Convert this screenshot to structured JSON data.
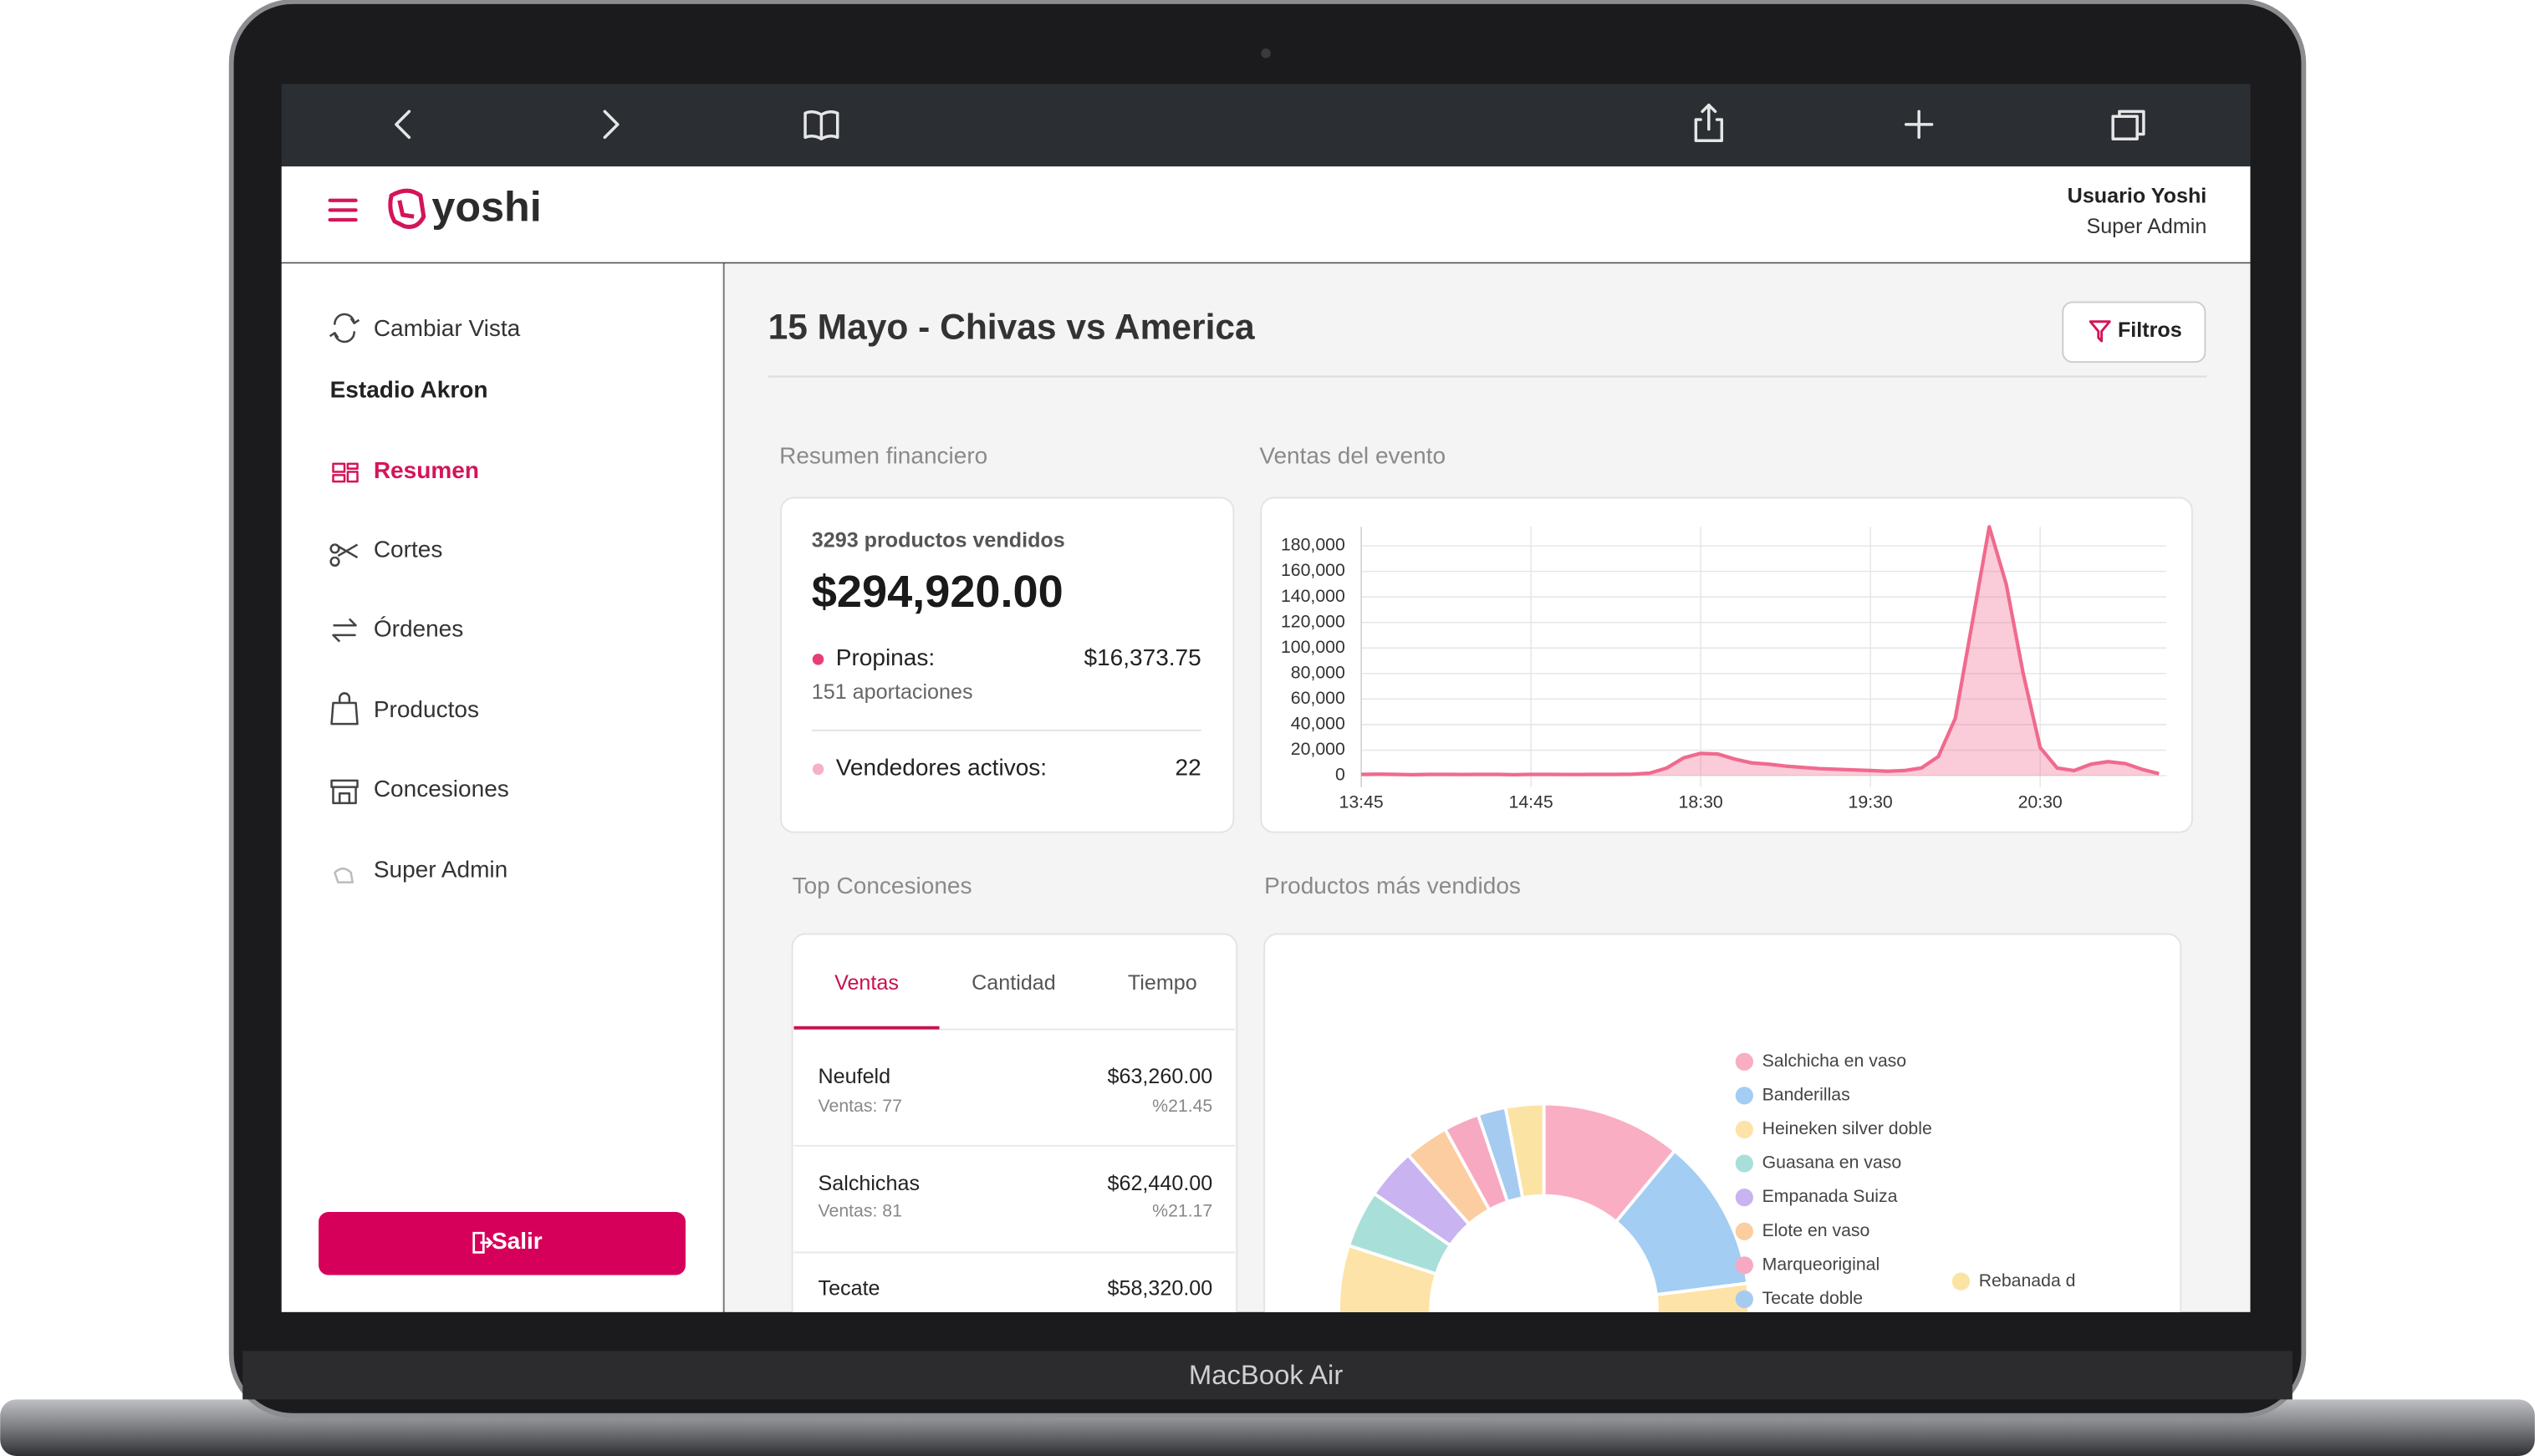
{
  "device_label": "MacBook Air",
  "header": {
    "brand": "yoshi",
    "user_name": "Usuario Yoshi",
    "user_role": "Super Admin"
  },
  "sidebar": {
    "switch_view": "Cambiar Vista",
    "venue": "Estadio Akron",
    "items": [
      "Resumen",
      "Cortes",
      "Órdenes",
      "Productos",
      "Concesiones",
      "Super Admin"
    ],
    "logout": "Salir"
  },
  "page": {
    "title": "15 Mayo - Chivas vs America",
    "filters_button": "Filtros"
  },
  "financial": {
    "title": "Resumen financiero",
    "products_sold": "3293 productos vendidos",
    "total": "$294,920.00",
    "tips_label": "Propinas:",
    "tips_value": "$16,373.75",
    "tips_count": "151 aportaciones",
    "active_vendors_label": "Vendedores activos:",
    "active_vendors_value": "22"
  },
  "sales_chart": {
    "type": "area",
    "title": "Ventas del evento",
    "categories": [
      "13:45",
      null,
      null,
      null,
      null,
      null,
      null,
      null,
      null,
      null,
      "14:45",
      null,
      null,
      null,
      null,
      null,
      null,
      null,
      null,
      null,
      "18:30",
      null,
      null,
      null,
      null,
      null,
      null,
      null,
      null,
      null,
      "19:30",
      null,
      null,
      null,
      null,
      null,
      null,
      null,
      null,
      null,
      "20:30",
      null,
      null,
      null,
      null,
      null,
      null,
      null
    ],
    "values": [
      1000,
      1200,
      1000,
      800,
      1000,
      1000,
      900,
      1000,
      1000,
      800,
      1000,
      1000,
      900,
      900,
      1000,
      1000,
      1200,
      2000,
      6000,
      14000,
      17500,
      17000,
      13000,
      10000,
      9000,
      7500,
      6500,
      5500,
      5000,
      4500,
      4000,
      3500,
      4000,
      6000,
      15000,
      45000,
      120000,
      195000,
      150000,
      80000,
      22000,
      6000,
      4000,
      9000,
      11000,
      9500,
      5000,
      1500
    ],
    "color": "#f06a8e",
    "ylim": [
      0,
      200000
    ],
    "yticks": [
      0,
      {
        "value": 20000,
        "label": "20,000"
      },
      {
        "value": 40000,
        "label": "40,000"
      },
      {
        "value": 60000,
        "label": "60,000"
      },
      {
        "value": 80000,
        "label": "80,000"
      },
      {
        "value": 100000,
        "label": "100,000"
      },
      {
        "value": 120000,
        "label": "120,000"
      },
      {
        "value": 140000,
        "label": "140,000"
      },
      {
        "value": 160000,
        "label": "160,000"
      },
      {
        "value": 180000,
        "label": "180,000"
      }
    ],
    "grid": true
  },
  "top_concessions": {
    "title": "Top Concesiones",
    "tabs": [
      "Ventas",
      "Cantidad",
      "Tiempo"
    ],
    "rows": [
      {
        "name": "Neufeld",
        "amount": "$63,260.00",
        "sales": "Ventas: 77",
        "share": "%21.45"
      },
      {
        "name": "Salchichas",
        "amount": "$62,440.00",
        "sales": "Ventas: 81",
        "share": "%21.17"
      },
      {
        "name": "Tecate",
        "amount": "$58,320.00"
      }
    ]
  },
  "products_chart": {
    "type": "donut",
    "title": "Productos más vendidos",
    "categories": [
      "Salchicha en vaso",
      "Banderillas",
      "Heineken silver doble",
      "Guasana en vaso",
      "Empanada Suiza",
      "Elote en vaso",
      "Marqueoriginal",
      "Tecate doble",
      "Rebanada d"
    ],
    "values": [
      11,
      12,
      57,
      4.5,
      4,
      3.5,
      2.8,
      2.2,
      3
    ],
    "colors": [
      "#f9aec4",
      "#a3cdf2",
      "#fde3a7",
      "#a8e0d9",
      "#c9b3f0",
      "#fbcda0",
      "#f7a9c2",
      "#a5cbf0",
      "#fbe3a3"
    ]
  }
}
